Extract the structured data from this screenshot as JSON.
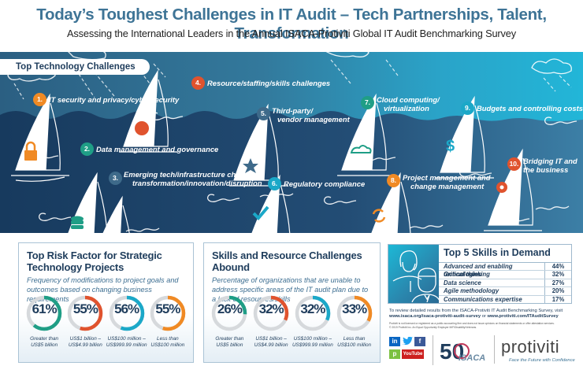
{
  "header": {
    "title": "Today’s Toughest Challenges in IT Audit – Tech Partnerships, Talent, Transformation",
    "subtitle": "Assessing the International Leaders in the Annual ISACA-Protiviti Global IT Audit Benchmarking Survey"
  },
  "tech_challenges": {
    "section_label": "Top Technology Challenges",
    "items": [
      {
        "rank": "1.",
        "label": "IT security and privacy/cybersecurity",
        "icon": "lock-icon",
        "color": "#f08a24"
      },
      {
        "rank": "2.",
        "label": "Data management and governance",
        "icon": "database-icon",
        "color": "#1f9e86"
      },
      {
        "rank": "3.",
        "label_line1": "Emerging tech/infrastructure changes –",
        "label_line2": "transformation/innovation/disruption",
        "icon": "tornado-icon",
        "color": "#3e6a8a"
      },
      {
        "rank": "4.",
        "label": "Resource/staffing/skills challenges",
        "icon": "person-head-icon",
        "color": "#e0532e"
      },
      {
        "rank": "5.",
        "label_line1": "Third-party/",
        "label_line2": "vendor management",
        "icon": "star-badge-icon",
        "color": "#3e6a8a"
      },
      {
        "rank": "6.",
        "label": "Regulatory compliance",
        "icon": "checkmark-icon",
        "color": "#1ba8c8"
      },
      {
        "rank": "7.",
        "label_line1": "Cloud computing/",
        "label_line2": "virtualization",
        "icon": "cloud-icon",
        "color": "#1f9e86"
      },
      {
        "rank": "8.",
        "label_line1": "Project management and",
        "label_line2": "change management",
        "icon": "refresh-icon",
        "color": "#f08a24"
      },
      {
        "rank": "9.",
        "label": "Budgets and controlling costs",
        "icon": "dollar-icon",
        "color": "#1ba8c8"
      },
      {
        "rank": "10.",
        "label_line1": "Bridging IT and",
        "label_line2": "the business",
        "icon": "gear-icon",
        "color": "#e0532e"
      }
    ]
  },
  "risk_panel": {
    "title_line1": "Top Risk Factor for Strategic",
    "title_line2": "Technology Projects",
    "description": "Frequency of modifications to project goals and outcomes based on changing business requirements",
    "donuts": [
      {
        "pct": "61%",
        "value": 61,
        "cap1": "Greater than",
        "cap2": "US$5 billion",
        "color": "#1f9e86"
      },
      {
        "pct": "55%",
        "value": 55,
        "cap1": "US$1 billion –",
        "cap2": "US$4.99 billion",
        "color": "#e0532e"
      },
      {
        "pct": "56%",
        "value": 56,
        "cap1": "US$100 million –",
        "cap2": "US$999.99 million",
        "color": "#1ba8c8"
      },
      {
        "pct": "55%",
        "value": 55,
        "cap1": "Less than",
        "cap2": "US$100 million",
        "color": "#f08a24"
      }
    ]
  },
  "skills_panel": {
    "title": "Skills and Resource Challenges Abound",
    "description": "Percentage of organizations that are unable to address specific areas of the IT audit plan due to a lack of resources/skills",
    "donuts": [
      {
        "pct": "26%",
        "value": 26,
        "cap1": "Greater than",
        "cap2": "US$5 billion",
        "color": "#1f9e86"
      },
      {
        "pct": "32%",
        "value": 32,
        "cap1": "US$1 billion –",
        "cap2": "US$4.99 billion",
        "color": "#e0532e"
      },
      {
        "pct": "32%",
        "value": 32,
        "cap1": "US$100 million –",
        "cap2": "US$999.99 million",
        "color": "#1ba8c8"
      },
      {
        "pct": "33%",
        "value": 33,
        "cap1": "Less than",
        "cap2": "US$100 million",
        "color": "#f08a24"
      }
    ]
  },
  "top_skills": {
    "title": "Top 5 Skills in Demand",
    "rows": [
      {
        "skill": "Advanced and enabling technologies",
        "pct": "44%"
      },
      {
        "skill": "Critical thinking",
        "pct": "32%"
      },
      {
        "skill": "Data science",
        "pct": "27%"
      },
      {
        "skill": "Agile methodology",
        "pct": "20%"
      },
      {
        "skill": "Communications expertise",
        "pct": "17%"
      }
    ]
  },
  "footer": {
    "review_text": "To review detailed results from the ISACA-Protiviti IT Audit Benchmarking Survey, visit",
    "link1": "www.isaca.org/isaca-protiviti-audit-survey",
    "or": " or ",
    "link2": "www.protiviti.com/ITAuditSurvey",
    "fine_print1": "Protiviti is not licensed or registered as a public accounting firm and does not issue opinions on financial statements or offer attestation services.",
    "fine_print2": "© 2019 Protiviti Inc. An Equal Opportunity Employer M/F/Disability/Veterans.",
    "social": {
      "linkedin": "in",
      "facebook": "f",
      "pinterest": "p",
      "youtube": "YouTube"
    },
    "isaca_logo": "ISACA",
    "isaca_anniversary": "50",
    "protiviti_logo": "protiviti",
    "protiviti_tagline": "Face the Future with Confidence"
  },
  "colors": {
    "title": "#3e7496",
    "navy": "#1f3d5c",
    "teal": "#1f9e86",
    "red": "#e0532e",
    "cyan": "#1ba8c8",
    "orange": "#f08a24"
  }
}
